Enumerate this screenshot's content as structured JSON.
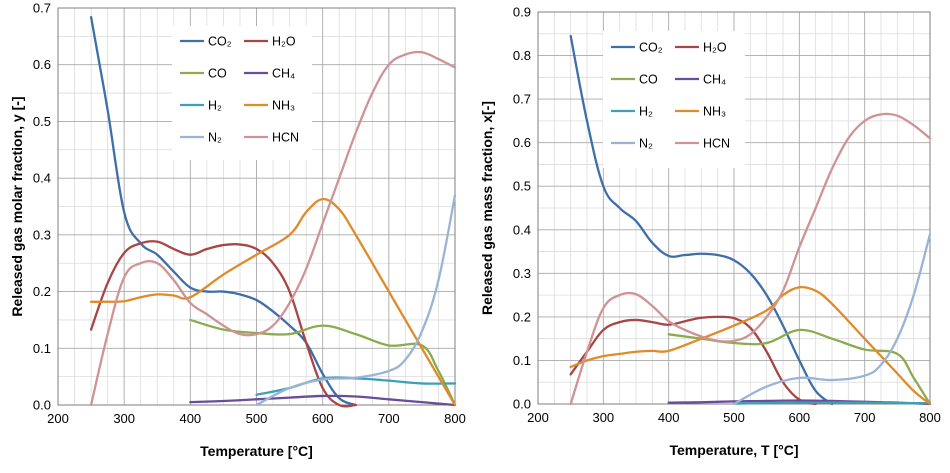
{
  "chart_data": [
    {
      "type": "line",
      "xlabel": "Temperature [°C]",
      "ylabel": "Released gas molar fraction, y [-]",
      "xlim": [
        200,
        800
      ],
      "ylim": [
        0,
        0.7
      ],
      "xticks": [
        200,
        300,
        400,
        500,
        600,
        700,
        800
      ],
      "yticks": [
        0,
        0.1,
        0.2,
        0.3,
        0.4,
        0.5,
        0.6,
        0.7
      ],
      "xtick_labels": [
        "200",
        "300",
        "400",
        "500",
        "600",
        "700",
        "800"
      ],
      "ytick_labels": [
        "0.0",
        "0.1",
        "0.2",
        "0.3",
        "0.4",
        "0.5",
        "0.6",
        "0.7"
      ],
      "legend_position": "top-center",
      "series": [
        {
          "name": "CO₂",
          "color": "#3f6fa8",
          "x": [
            250,
            275,
            300,
            325,
            350,
            375,
            400,
            425,
            450,
            475,
            500,
            525,
            550,
            575,
            600,
            625,
            650
          ],
          "y": [
            0.684,
            0.52,
            0.34,
            0.285,
            0.265,
            0.235,
            0.207,
            0.2,
            0.2,
            0.195,
            0.185,
            0.165,
            0.14,
            0.11,
            0.055,
            0.012,
            0.0
          ]
        },
        {
          "name": "H₂O",
          "color": "#a84545",
          "x": [
            250,
            275,
            300,
            325,
            350,
            375,
            400,
            425,
            450,
            475,
            500,
            525,
            550,
            575,
            600,
            625,
            650
          ],
          "y": [
            0.133,
            0.215,
            0.268,
            0.285,
            0.288,
            0.275,
            0.265,
            0.275,
            0.282,
            0.283,
            0.275,
            0.25,
            0.2,
            0.11,
            0.03,
            0.0,
            0.0
          ]
        },
        {
          "name": "CO",
          "color": "#8bab4c",
          "x": [
            400,
            450,
            500,
            550,
            600,
            650,
            700,
            750,
            775,
            800
          ],
          "y": [
            0.15,
            0.133,
            0.127,
            0.125,
            0.14,
            0.125,
            0.105,
            0.105,
            0.06,
            0.0
          ]
        },
        {
          "name": "CH₄",
          "color": "#6a4c9b",
          "x": [
            400,
            450,
            500,
            550,
            600,
            650,
            700,
            750,
            800
          ],
          "y": [
            0.005,
            0.007,
            0.01,
            0.013,
            0.016,
            0.015,
            0.01,
            0.005,
            0.0
          ]
        },
        {
          "name": "H₂",
          "color": "#3da1b5",
          "x": [
            500,
            550,
            600,
            650,
            700,
            750,
            800
          ],
          "y": [
            0.018,
            0.03,
            0.047,
            0.047,
            0.043,
            0.038,
            0.038
          ]
        },
        {
          "name": "NH₃",
          "color": "#e08a2a",
          "x": [
            250,
            275,
            300,
            325,
            350,
            375,
            400,
            450,
            500,
            550,
            575,
            600,
            625,
            650,
            700,
            750,
            775,
            800
          ],
          "y": [
            0.182,
            0.182,
            0.183,
            0.19,
            0.195,
            0.193,
            0.19,
            0.23,
            0.265,
            0.3,
            0.34,
            0.363,
            0.345,
            0.3,
            0.2,
            0.1,
            0.05,
            0.0
          ]
        },
        {
          "name": "N₂",
          "color": "#9ab4d6",
          "x": [
            500,
            550,
            600,
            650,
            700,
            725,
            750,
            775,
            800
          ],
          "y": [
            0.0,
            0.03,
            0.045,
            0.048,
            0.06,
            0.08,
            0.13,
            0.22,
            0.37
          ]
        },
        {
          "name": "HCN",
          "color": "#d09395",
          "x": [
            250,
            275,
            300,
            325,
            350,
            375,
            400,
            425,
            450,
            475,
            500,
            525,
            550,
            575,
            600,
            625,
            650,
            675,
            700,
            725,
            750,
            775,
            800
          ],
          "y": [
            0.0,
            0.125,
            0.225,
            0.25,
            0.25,
            0.22,
            0.18,
            0.16,
            0.14,
            0.125,
            0.125,
            0.14,
            0.18,
            0.24,
            0.32,
            0.4,
            0.48,
            0.55,
            0.6,
            0.618,
            0.622,
            0.61,
            0.595
          ]
        }
      ]
    },
    {
      "type": "line",
      "xlabel": "Temperature, T [°C]",
      "ylabel": "Released gas mass fraction, x[-]",
      "xlim": [
        200,
        800
      ],
      "ylim": [
        0,
        0.9
      ],
      "xticks": [
        200,
        300,
        400,
        500,
        600,
        700,
        800
      ],
      "yticks": [
        0,
        0.1,
        0.2,
        0.3,
        0.4,
        0.5,
        0.6,
        0.7,
        0.8,
        0.9
      ],
      "xtick_labels": [
        "200",
        "300",
        "400",
        "500",
        "600",
        "700",
        "800"
      ],
      "ytick_labels": [
        "0.0",
        "0.1",
        "0.2",
        "0.3",
        "0.4",
        "0.5",
        "0.6",
        "0.7",
        "0.8",
        "0.9"
      ],
      "legend_position": "top-center",
      "series": [
        {
          "name": "CO₂",
          "color": "#3f6fa8",
          "x": [
            250,
            275,
            300,
            325,
            350,
            375,
            400,
            425,
            450,
            475,
            500,
            525,
            550,
            575,
            600,
            625,
            650
          ],
          "y": [
            0.845,
            0.65,
            0.5,
            0.45,
            0.42,
            0.37,
            0.34,
            0.342,
            0.345,
            0.342,
            0.33,
            0.3,
            0.25,
            0.18,
            0.1,
            0.03,
            0.0
          ]
        },
        {
          "name": "H₂O",
          "color": "#a84545",
          "x": [
            250,
            275,
            300,
            325,
            350,
            375,
            400,
            425,
            450,
            475,
            500,
            525,
            550,
            575,
            600,
            625
          ],
          "y": [
            0.068,
            0.12,
            0.17,
            0.188,
            0.193,
            0.188,
            0.182,
            0.19,
            0.198,
            0.2,
            0.197,
            0.175,
            0.12,
            0.05,
            0.01,
            0.0
          ]
        },
        {
          "name": "CO",
          "color": "#8bab4c",
          "x": [
            400,
            450,
            500,
            550,
            600,
            650,
            700,
            750,
            775,
            800
          ],
          "y": [
            0.16,
            0.15,
            0.14,
            0.14,
            0.17,
            0.15,
            0.125,
            0.115,
            0.06,
            0.0
          ]
        },
        {
          "name": "CH₄",
          "color": "#6a4c9b",
          "x": [
            400,
            450,
            500,
            550,
            600,
            650,
            700,
            750,
            800
          ],
          "y": [
            0.003,
            0.004,
            0.006,
            0.007,
            0.008,
            0.007,
            0.005,
            0.003,
            0.0
          ]
        },
        {
          "name": "H₂",
          "color": "#3da1b5",
          "x": [
            500,
            550,
            600,
            650,
            700,
            750,
            800
          ],
          "y": [
            0.001,
            0.002,
            0.003,
            0.003,
            0.003,
            0.002,
            0.002
          ]
        },
        {
          "name": "NH₃",
          "color": "#e08a2a",
          "x": [
            250,
            275,
            300,
            325,
            350,
            375,
            400,
            450,
            500,
            550,
            575,
            600,
            625,
            650,
            700,
            750,
            775,
            800
          ],
          "y": [
            0.085,
            0.1,
            0.11,
            0.115,
            0.12,
            0.122,
            0.122,
            0.15,
            0.18,
            0.215,
            0.25,
            0.268,
            0.26,
            0.23,
            0.15,
            0.07,
            0.03,
            0.0
          ]
        },
        {
          "name": "N₂",
          "color": "#9ab4d6",
          "x": [
            500,
            550,
            600,
            650,
            700,
            725,
            750,
            775,
            800
          ],
          "y": [
            0.0,
            0.04,
            0.06,
            0.055,
            0.065,
            0.09,
            0.15,
            0.25,
            0.39
          ]
        },
        {
          "name": "HCN",
          "color": "#d09395",
          "x": [
            250,
            275,
            300,
            325,
            350,
            375,
            400,
            425,
            450,
            475,
            500,
            525,
            550,
            575,
            600,
            625,
            650,
            675,
            700,
            725,
            750,
            775,
            800
          ],
          "y": [
            0.0,
            0.12,
            0.22,
            0.25,
            0.252,
            0.225,
            0.19,
            0.17,
            0.155,
            0.145,
            0.145,
            0.16,
            0.2,
            0.26,
            0.36,
            0.45,
            0.54,
            0.61,
            0.65,
            0.665,
            0.662,
            0.64,
            0.61
          ]
        }
      ]
    }
  ]
}
